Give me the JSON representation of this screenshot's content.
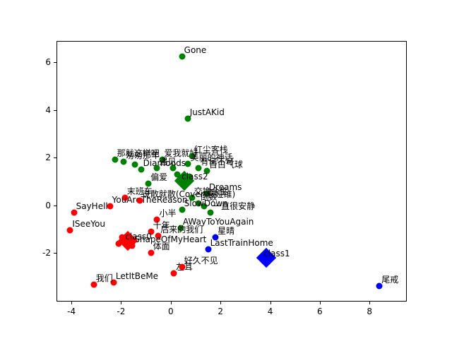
{
  "chart_data": {
    "type": "scatter",
    "title": "",
    "xlabel": "",
    "ylabel": "",
    "grid": false,
    "legend": null,
    "xlim": [
      -4.6,
      9.5
    ],
    "ylim": [
      -4.05,
      6.9
    ],
    "xticks": [
      "-4",
      "-2",
      "0",
      "2",
      "4",
      "6",
      "8"
    ],
    "xtick_values": [
      -4,
      -2,
      0,
      2,
      4,
      6,
      8
    ],
    "yticks": [
      "-2",
      "0",
      "2",
      "4",
      "6"
    ],
    "ytick_values": [
      -2,
      0,
      2,
      4,
      6
    ],
    "axis_color": "#000000",
    "background_color": "#ffffff",
    "clusters": [
      {
        "name": "class2",
        "color": "#008000",
        "center": {
          "x": 0.55,
          "y": 1.02,
          "label": "class2"
        },
        "points": [
          {
            "x": 0.45,
            "y": 6.25,
            "label": "Gone"
          },
          {
            "x": 0.68,
            "y": 3.65,
            "label": "JustAKid"
          },
          {
            "x": -2.25,
            "y": 1.9,
            "label": "那就这样吧"
          },
          {
            "x": -1.9,
            "y": 1.82,
            "label": "匆匆那年"
          },
          {
            "x": -1.45,
            "y": 1.7,
            "label": ""
          },
          {
            "x": -0.35,
            "y": 1.9,
            "label": "爱我就好"
          },
          {
            "x": 0.85,
            "y": 2.05,
            "label": "红尘客栈"
          },
          {
            "x": 0.7,
            "y": 1.75,
            "label": "美丽的神话"
          },
          {
            "x": -1.2,
            "y": 1.5,
            "label": "Diamonds"
          },
          {
            "x": -0.55,
            "y": 1.55,
            "label": "遇见"
          },
          {
            "x": 0.1,
            "y": 1.55,
            "label": ""
          },
          {
            "x": 1.1,
            "y": 1.55,
            "label": "有何不可"
          },
          {
            "x": 1.45,
            "y": 1.45,
            "label": "告白气球"
          },
          {
            "x": -0.9,
            "y": 0.92,
            "label": "偏爱"
          },
          {
            "x": 0.25,
            "y": 1.3,
            "label": ""
          },
          {
            "x": 0.75,
            "y": 1.2,
            "label": ""
          },
          {
            "x": 1.45,
            "y": 0.5,
            "label": "Dreams"
          },
          {
            "x": 0.85,
            "y": 0.3,
            "label": "交换余生"
          },
          {
            "x": 1.1,
            "y": 0.08,
            "label": "倒数"
          },
          {
            "x": 1.35,
            "y": -0.05,
            "label": ""
          },
          {
            "x": 0.45,
            "y": -0.2,
            "label": "SlowDown"
          },
          {
            "x": 1.6,
            "y": -0.3,
            "label": "一直很安静"
          },
          {
            "x": 0.4,
            "y": -0.95,
            "label": "AWayToYouAgain"
          }
        ]
      },
      {
        "name": "class0",
        "color": "#ff0000",
        "center": {
          "x": -1.72,
          "y": -1.5,
          "label": "class0"
        },
        "points": [
          {
            "x": -3.9,
            "y": -0.3,
            "label": "SayHello"
          },
          {
            "x": -4.05,
            "y": -1.05,
            "label": "ISeeYou"
          },
          {
            "x": -1.85,
            "y": 0.3,
            "label": "末班车"
          },
          {
            "x": -2.45,
            "y": -0.05,
            "label": "YouAreTheReason"
          },
          {
            "x": -1.25,
            "y": 0.2,
            "label": "说散就散(Cover:袁娅维)"
          },
          {
            "x": -0.55,
            "y": -0.6,
            "label": "小半"
          },
          {
            "x": -0.8,
            "y": -1.12,
            "label": "十年"
          },
          {
            "x": -0.5,
            "y": -1.3,
            "label": "后来的我们"
          },
          {
            "x": -1.95,
            "y": -1.35,
            "label": ""
          },
          {
            "x": -2.1,
            "y": -1.62,
            "label": ""
          },
          {
            "x": -1.55,
            "y": -1.72,
            "label": "ShapeOfMyHeart"
          },
          {
            "x": -0.8,
            "y": -2.0,
            "label": "体面"
          },
          {
            "x": 0.12,
            "y": -2.85,
            "label": "左耳"
          },
          {
            "x": 0.45,
            "y": -2.6,
            "label": "好久不见"
          },
          {
            "x": -2.3,
            "y": -3.25,
            "label": "LetItBeMe"
          },
          {
            "x": -3.1,
            "y": -3.35,
            "label": "我们"
          }
        ]
      },
      {
        "name": "class1",
        "color": "#0000ff",
        "center": {
          "x": 3.85,
          "y": -2.2,
          "label": "class1"
        },
        "points": [
          {
            "x": 1.8,
            "y": -1.35,
            "label": "星晴"
          },
          {
            "x": 1.5,
            "y": -1.85,
            "label": "LastTrainHome"
          },
          {
            "x": 8.4,
            "y": -3.4,
            "label": "尾戒"
          }
        ]
      }
    ]
  }
}
